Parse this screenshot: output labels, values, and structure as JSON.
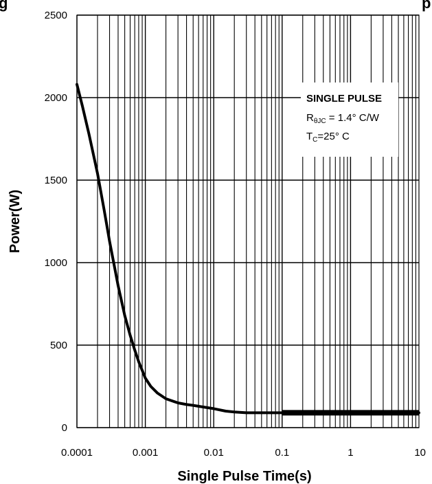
{
  "chart_data": {
    "type": "line",
    "title_partial_left": "g",
    "title_partial_right": "p",
    "xlabel": "Single Pulse Time(s)",
    "ylabel": "Power(W)",
    "xscale": "log",
    "xlim": [
      0.0001,
      10
    ],
    "ylim": [
      0,
      2500
    ],
    "x_tick_labels": [
      "0.0001",
      "0.001",
      "0.01",
      "0.1",
      "1",
      "10"
    ],
    "x_tick_values": [
      0.0001,
      0.001,
      0.01,
      0.1,
      1,
      10
    ],
    "y_tick_labels": [
      "0",
      "500",
      "1000",
      "1500",
      "2000",
      "2500"
    ],
    "y_tick_values": [
      0,
      500,
      1000,
      1500,
      2000,
      2500
    ],
    "grid": true,
    "annotation": {
      "line1": "SINGLE PULSE",
      "line2_main": "R",
      "line2_sub": "θJC",
      "line2_rest": " = 1.4° C/W",
      "line3_main": "T",
      "line3_sub": "C",
      "line3_rest": "=25° C",
      "placement": "top-right"
    },
    "series": [
      {
        "x": [
          0.0001,
          0.00012,
          0.00015,
          0.0002,
          0.00025,
          0.0003,
          0.0004,
          0.0005,
          0.0006,
          0.0007,
          0.0008,
          0.001,
          0.0012,
          0.0015,
          0.002,
          0.003,
          0.004,
          0.005,
          0.007,
          0.01,
          0.015,
          0.02,
          0.03,
          0.05,
          0.1,
          1,
          10
        ],
        "y": [
          2080,
          1950,
          1780,
          1540,
          1320,
          1130,
          860,
          680,
          560,
          470,
          400,
          300,
          250,
          210,
          175,
          150,
          140,
          135,
          125,
          115,
          100,
          95,
          90,
          90,
          90,
          90,
          90
        ]
      }
    ]
  }
}
